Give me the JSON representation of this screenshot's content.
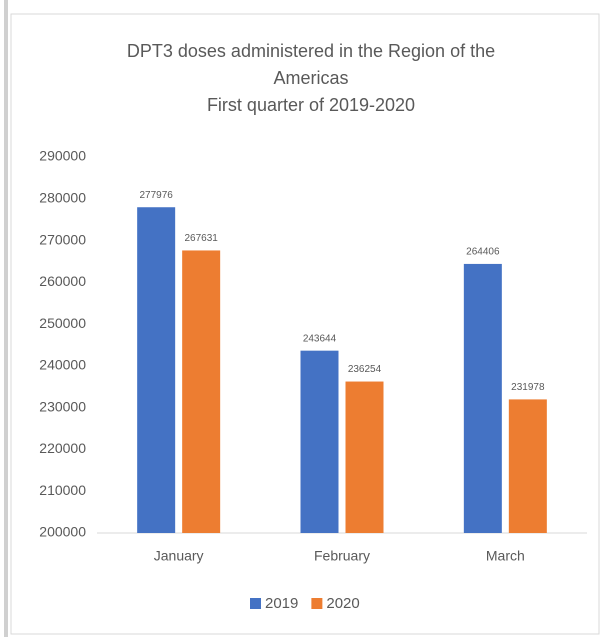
{
  "chart_data": {
    "type": "bar",
    "title": [
      "DPT3 doses administered in the Region of the",
      "Americas"
    ],
    "subtitle": "First quarter of 2019-2020",
    "categories": [
      "January",
      "February",
      "March"
    ],
    "series": [
      {
        "name": "2019",
        "color": "#4472c4",
        "values": [
          277976,
          243644,
          264406
        ]
      },
      {
        "name": "2020",
        "color": "#ed7d31",
        "values": [
          267631,
          236254,
          231978
        ]
      }
    ],
    "ylim": [
      200000,
      290000
    ],
    "yticks": [
      200000,
      210000,
      220000,
      230000,
      240000,
      250000,
      260000,
      270000,
      280000,
      290000
    ],
    "grid": false,
    "legend": "bottom"
  }
}
